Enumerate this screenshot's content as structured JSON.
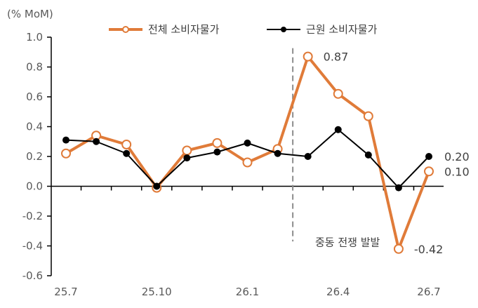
{
  "chart_data": {
    "type": "line",
    "unit_label": "(% MoM)",
    "x": [
      "25.7",
      "25.8",
      "25.9",
      "25.10",
      "25.11",
      "25.12",
      "26.1",
      "26.2",
      "26.3",
      "26.4",
      "26.5",
      "26.6",
      "26.7"
    ],
    "x_tick_labels": [
      "25.7",
      "25.10",
      "26.1",
      "26.4",
      "26.7"
    ],
    "y_tick_labels": [
      "1.0",
      "0.8",
      "0.6",
      "0.4",
      "0.2",
      "0.0",
      "-0.2",
      "-0.4",
      "-0.6"
    ],
    "ylim": [
      -0.6,
      1.0
    ],
    "grid": false,
    "legend_position": "top",
    "series": [
      {
        "name": "전체 소비자물가",
        "color": "#E07B39",
        "marker": "hollow-circle",
        "x": [
          "25.7",
          "25.8",
          "25.9",
          "25.10",
          "25.11",
          "25.12",
          "26.1",
          "26.2",
          "26.3",
          "26.4",
          "26.5",
          "26.6",
          "26.7"
        ],
        "values": [
          0.22,
          0.34,
          0.28,
          -0.01,
          0.24,
          0.29,
          0.16,
          0.25,
          0.87,
          0.62,
          0.47,
          -0.42,
          0.1
        ]
      },
      {
        "name": "근원 소비자물가",
        "color": "#000000",
        "marker": "filled-circle",
        "x": [
          "25.7",
          "25.8",
          "25.9",
          "25.10",
          "25.11",
          "25.12",
          "26.1",
          "26.2",
          "26.3",
          "26.4",
          "26.5",
          "26.6",
          "26.7"
        ],
        "values": [
          0.31,
          0.3,
          0.22,
          0.0,
          0.19,
          0.23,
          0.29,
          0.22,
          0.2,
          0.38,
          0.21,
          -0.01,
          0.2
        ]
      }
    ],
    "data_labels": [
      {
        "series": 0,
        "x": "26.3",
        "text": "0.87"
      },
      {
        "series": 0,
        "x": "26.6",
        "text": "-0.42"
      },
      {
        "series": 1,
        "x": "26.7",
        "text": "0.20"
      },
      {
        "series": 0,
        "x": "26.7",
        "text": "0.10"
      }
    ],
    "annotation": {
      "text": "중동 전쟁 발발",
      "x_between": [
        "26.2",
        "26.3"
      ],
      "line_style": "dashed",
      "color": "#8C8C8C"
    }
  }
}
